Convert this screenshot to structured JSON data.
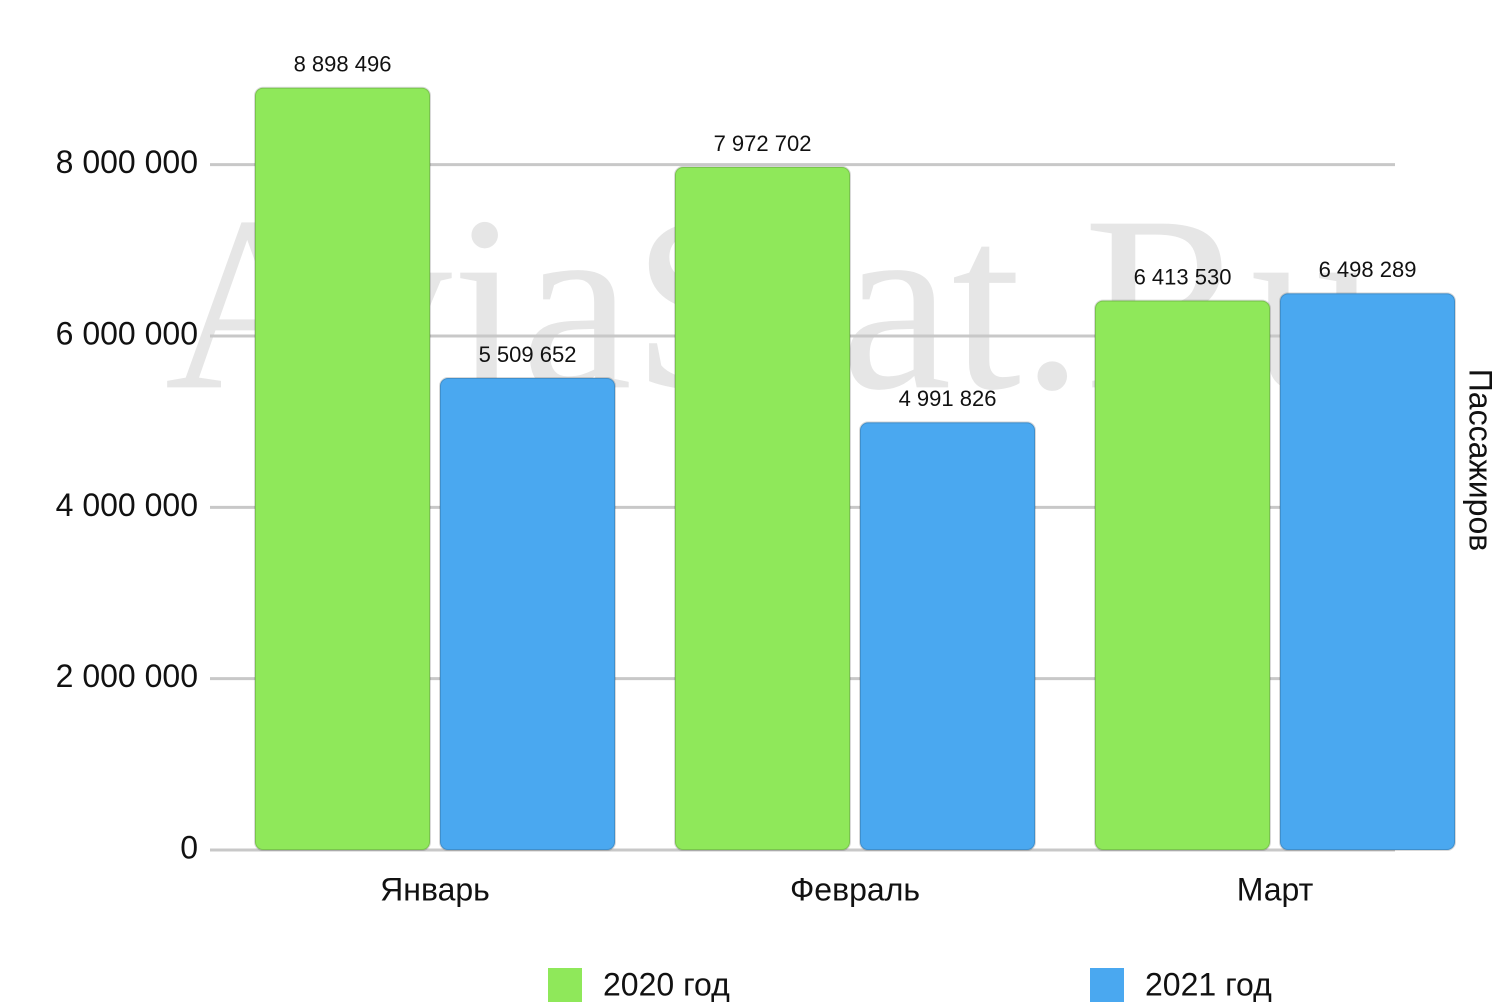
{
  "chart_data": {
    "type": "bar",
    "watermark": "AviaStat.Ru",
    "y_label": "Пассажиров",
    "categories": [
      "Январь",
      "Февраль",
      "Март"
    ],
    "series": [
      {
        "name": "2020 год",
        "color": "#8fe85a",
        "values": [
          8898496,
          7972702,
          6413530
        ],
        "value_labels": [
          "8 898 496",
          "7 972 702",
          "6 413 530"
        ]
      },
      {
        "name": "2021 год",
        "color": "#4aa8f0",
        "values": [
          5509652,
          4991826,
          6498289
        ],
        "value_labels": [
          "5 509 652",
          "4 991 826",
          "6 498 289"
        ]
      }
    ],
    "ylim": [
      0,
      9000000
    ],
    "yticks": [
      0,
      {
        "value": 2000000,
        "label": "2 000 000"
      },
      {
        "value": 4000000,
        "label": "4 000 000"
      },
      {
        "value": 6000000,
        "label": "6 000 000"
      },
      {
        "value": 8000000,
        "label": "8 000 000"
      }
    ],
    "grid": true
  }
}
